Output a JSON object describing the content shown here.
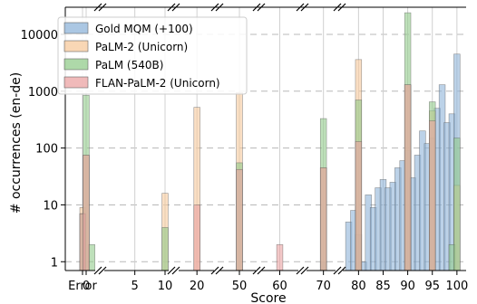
{
  "chart_data": {
    "type": "bar",
    "title": "",
    "xlabel": "Score",
    "ylabel": "# occurrences (en-de)",
    "y_scale": "log",
    "ylim": [
      0.7,
      40000
    ],
    "y_ticks": [
      {
        "value": 1,
        "label": "1"
      },
      {
        "value": 10,
        "label": "10"
      },
      {
        "value": 100,
        "label": "100"
      },
      {
        "value": 1000,
        "label": "1000"
      },
      {
        "value": 10000,
        "label": "10000"
      }
    ],
    "x_axis": "broken",
    "x_ticks": [
      "Error",
      "0",
      "5",
      "10",
      "20",
      "50",
      "60",
      "70",
      "80",
      "85",
      "90",
      "95",
      "100"
    ],
    "grid": true,
    "legend_position": "top-left",
    "series": [
      {
        "name": "Gold MQM (+100)",
        "color": "#8fb4d9",
        "points": [
          {
            "x": 70,
            "y": 1
          },
          {
            "x": 78,
            "y": 5
          },
          {
            "x": 79,
            "y": 8
          },
          {
            "x": 80,
            "y": 3
          },
          {
            "x": 81,
            "y": 1
          },
          {
            "x": 82,
            "y": 15
          },
          {
            "x": 83,
            "y": 9
          },
          {
            "x": 84,
            "y": 20
          },
          {
            "x": 85,
            "y": 28
          },
          {
            "x": 86,
            "y": 20
          },
          {
            "x": 87,
            "y": 25
          },
          {
            "x": 88,
            "y": 45
          },
          {
            "x": 89,
            "y": 60
          },
          {
            "x": 90,
            "y": 90
          },
          {
            "x": 91,
            "y": 30
          },
          {
            "x": 92,
            "y": 75
          },
          {
            "x": 93,
            "y": 200
          },
          {
            "x": 94,
            "y": 120
          },
          {
            "x": 95,
            "y": 150
          },
          {
            "x": 96,
            "y": 500
          },
          {
            "x": 97,
            "y": 1300
          },
          {
            "x": 98,
            "y": 280
          },
          {
            "x": 99,
            "y": 400
          },
          {
            "x": 100,
            "y": 4500
          }
        ]
      },
      {
        "name": "PaLM-2 (Unicorn)",
        "color": "#f7c99c",
        "points": [
          {
            "x": "Error",
            "y": 9
          },
          {
            "x": 0,
            "y": 75
          },
          {
            "x": 10,
            "y": 16
          },
          {
            "x": 20,
            "y": 520
          },
          {
            "x": 50,
            "y": 950
          },
          {
            "x": 70,
            "y": 45
          },
          {
            "x": 80,
            "y": 3600
          },
          {
            "x": 90,
            "y": 1300
          },
          {
            "x": 95,
            "y": 450
          },
          {
            "x": 100,
            "y": 22
          }
        ]
      },
      {
        "name": "PaLM (540B)",
        "color": "#93cc8c",
        "points": [
          {
            "x": "Error",
            "y": 7
          },
          {
            "x": 0,
            "y": 850
          },
          {
            "x": 1,
            "y": 2
          },
          {
            "x": 10,
            "y": 4
          },
          {
            "x": 50,
            "y": 55
          },
          {
            "x": 70,
            "y": 330
          },
          {
            "x": 80,
            "y": 700
          },
          {
            "x": 90,
            "y": 24000
          },
          {
            "x": 95,
            "y": 650
          },
          {
            "x": 99,
            "y": 2
          },
          {
            "x": 100,
            "y": 150
          }
        ]
      },
      {
        "name": "FLAN-PaLM-2 (Unicorn)",
        "color": "#eba3a3",
        "points": [
          {
            "x": "Error",
            "y": 7
          },
          {
            "x": 0,
            "y": 75
          },
          {
            "x": 20,
            "y": 10
          },
          {
            "x": 50,
            "y": 42
          },
          {
            "x": 60,
            "y": 2
          },
          {
            "x": 70,
            "y": 45
          },
          {
            "x": 80,
            "y": 130
          },
          {
            "x": 90,
            "y": 1300
          },
          {
            "x": 95,
            "y": 300
          }
        ]
      }
    ]
  }
}
